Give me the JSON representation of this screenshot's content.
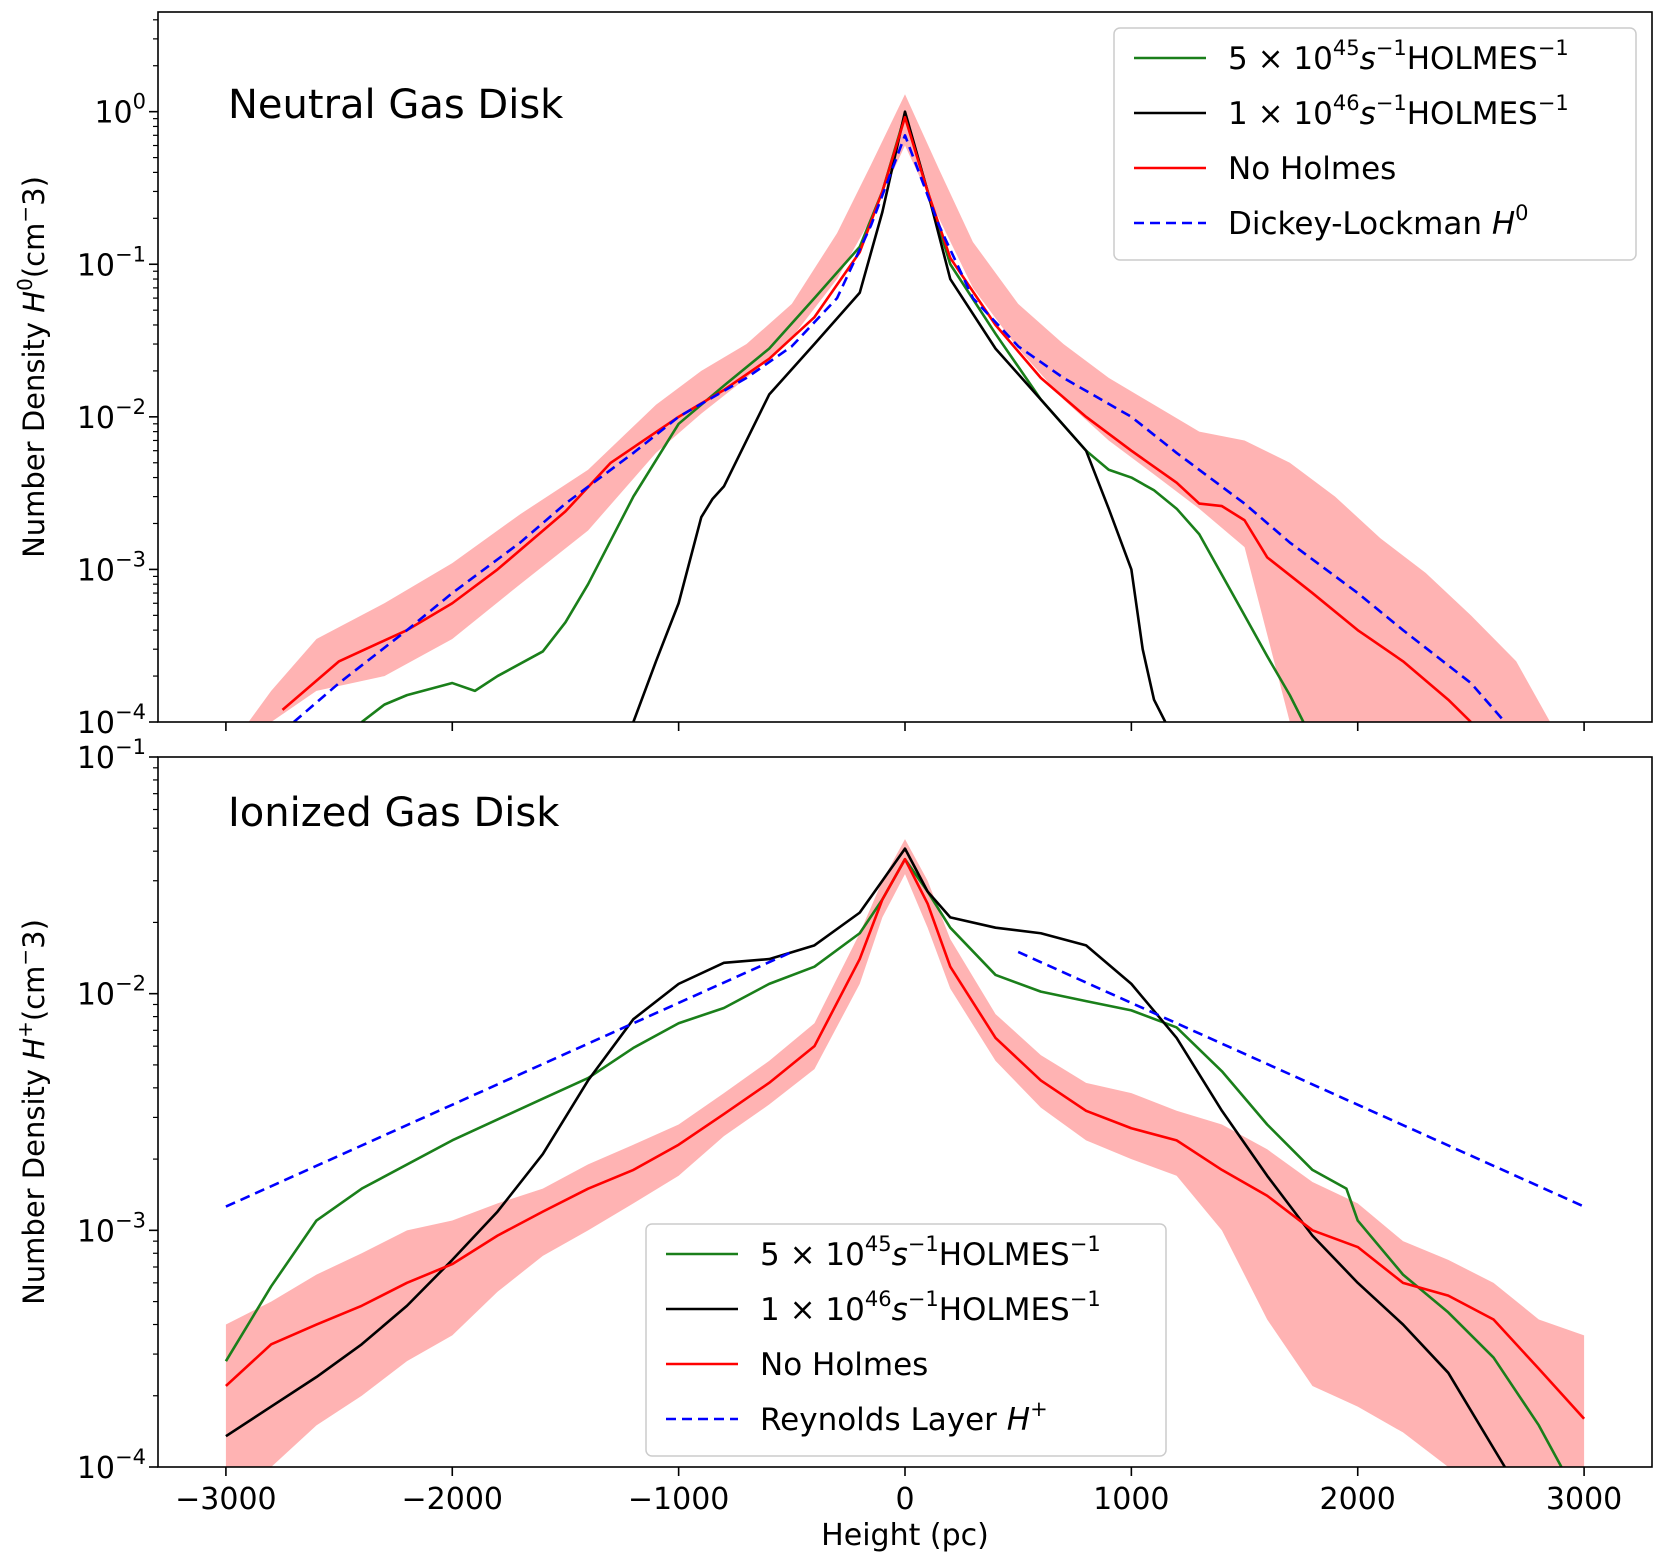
{
  "xlabel": "Height (pc)",
  "chart_data": [
    {
      "type": "line",
      "title": "",
      "annotation": "Neutral Gas Disk",
      "ylabel": "Number Density H⁰(cm⁻3)",
      "ylabel_parts": [
        "Number Density ",
        "H",
        "0",
        "(cm",
        "−",
        "3)"
      ],
      "xlabel": "Height (pc)",
      "xlim": [
        -3300,
        3300
      ],
      "ylim": [
        0.0001,
        4.5
      ],
      "yscale": "log",
      "xticks": [
        -3000,
        -2000,
        -1000,
        0,
        1000,
        2000,
        3000
      ],
      "yticks": [
        {
          "value": 1,
          "exp": "0"
        },
        {
          "value": 0.1,
          "exp": "−1"
        },
        {
          "value": 0.01,
          "exp": "−2"
        },
        {
          "value": 0.001,
          "exp": "−3"
        },
        {
          "value": 0.0001,
          "exp": "−4"
        }
      ],
      "legend_position": "upper-right",
      "legend": [
        {
          "series": "green",
          "parts": [
            "5 × 10",
            "45",
            "s",
            "−1",
            "HOLMES",
            "−1"
          ]
        },
        {
          "series": "black",
          "parts": [
            "1 × 10",
            "46",
            "s",
            "−1",
            "HOLMES",
            "−1"
          ]
        },
        {
          "series": "red",
          "parts": [
            "No Holmes"
          ]
        },
        {
          "series": "blue",
          "parts": [
            "Dickey-Lockman ",
            "H",
            "0"
          ]
        }
      ],
      "series": [
        {
          "key": "green",
          "name": "5 × 10^45 s^-1 HOLMES^-1",
          "color": "#1a7f1a",
          "style": "solid",
          "x": [
            -2400,
            -2300,
            -2200,
            -2000,
            -1900,
            -1800,
            -1600,
            -1500,
            -1400,
            -1200,
            -1000,
            -800,
            -600,
            -400,
            -200,
            -100,
            0,
            100,
            200,
            400,
            600,
            800,
            900,
            1000,
            1100,
            1200,
            1300,
            1500,
            1600,
            1700,
            1760
          ],
          "y": [
            0.0001,
            0.00013,
            0.00015,
            0.00018,
            0.00016,
            0.0002,
            0.00029,
            0.00045,
            0.0008,
            0.003,
            0.009,
            0.016,
            0.028,
            0.06,
            0.13,
            0.3,
            0.95,
            0.3,
            0.1,
            0.035,
            0.013,
            0.006,
            0.0045,
            0.004,
            0.0033,
            0.0025,
            0.0017,
            0.0005,
            0.00027,
            0.00015,
            0.0001
          ]
        },
        {
          "key": "black",
          "name": "1 × 10^46 s^-1 HOLMES^-1",
          "color": "#000000",
          "style": "solid",
          "x": [
            -1200,
            -1100,
            -1000,
            -900,
            -850,
            -800,
            -700,
            -600,
            -400,
            -200,
            -100,
            0,
            100,
            200,
            400,
            600,
            800,
            900,
            1000,
            1050,
            1100,
            1150
          ],
          "y": [
            0.0001,
            0.00025,
            0.0006,
            0.0022,
            0.0029,
            0.0035,
            0.007,
            0.014,
            0.03,
            0.065,
            0.22,
            1.0,
            0.3,
            0.08,
            0.028,
            0.013,
            0.006,
            0.0025,
            0.001,
            0.0003,
            0.00014,
            0.0001
          ]
        },
        {
          "key": "red",
          "name": "No Holmes",
          "color": "#ff0000",
          "style": "solid",
          "x": [
            -2750,
            -2500,
            -2200,
            -2000,
            -1800,
            -1500,
            -1300,
            -1000,
            -800,
            -600,
            -400,
            -200,
            -100,
            0,
            100,
            200,
            400,
            600,
            800,
            1000,
            1200,
            1300,
            1400,
            1500,
            1600,
            1800,
            2000,
            2200,
            2400,
            2500
          ],
          "y": [
            0.00012,
            0.00025,
            0.0004,
            0.0006,
            0.001,
            0.0024,
            0.005,
            0.01,
            0.015,
            0.024,
            0.045,
            0.12,
            0.3,
            0.92,
            0.3,
            0.11,
            0.04,
            0.018,
            0.01,
            0.006,
            0.0037,
            0.0027,
            0.0026,
            0.0021,
            0.0012,
            0.0007,
            0.0004,
            0.00025,
            0.00014,
            0.0001
          ]
        },
        {
          "key": "blue",
          "name": "Dickey-Lockman H0",
          "color": "#0000ff",
          "style": "dashed",
          "x": [
            -2700,
            -2500,
            -2200,
            -2000,
            -1700,
            -1500,
            -1200,
            -1000,
            -700,
            -500,
            -300,
            -150,
            0,
            150,
            300,
            500,
            700,
            1000,
            1200,
            1500,
            1700,
            2000,
            2200,
            2500,
            2650
          ],
          "y": [
            0.0001,
            0.00018,
            0.0004,
            0.0007,
            0.0015,
            0.0027,
            0.0058,
            0.01,
            0.018,
            0.029,
            0.06,
            0.18,
            0.7,
            0.18,
            0.06,
            0.029,
            0.018,
            0.01,
            0.0058,
            0.0027,
            0.0015,
            0.0007,
            0.0004,
            0.00018,
            0.0001
          ]
        }
      ],
      "band": {
        "of": "red",
        "color": "#ff9999",
        "opacity": 0.75,
        "x": [
          -2900,
          -2800,
          -2600,
          -2300,
          -2000,
          -1700,
          -1400,
          -1100,
          -900,
          -700,
          -500,
          -300,
          -150,
          0,
          150,
          300,
          500,
          700,
          900,
          1100,
          1300,
          1500,
          1700,
          1900,
          2100,
          2300,
          2500,
          2700,
          2850
        ],
        "upper": [
          0.0001,
          0.00016,
          0.00035,
          0.0006,
          0.0011,
          0.0023,
          0.0045,
          0.012,
          0.02,
          0.03,
          0.055,
          0.16,
          0.45,
          1.3,
          0.42,
          0.14,
          0.055,
          0.03,
          0.018,
          0.012,
          0.008,
          0.007,
          0.005,
          0.003,
          0.0016,
          0.00095,
          0.0005,
          0.00025,
          0.0001
        ],
        "lower": [
          0.0001,
          0.0001,
          0.00016,
          0.0002,
          0.00035,
          0.0008,
          0.0018,
          0.0058,
          0.0105,
          0.018,
          0.033,
          0.08,
          0.2,
          0.6,
          0.2,
          0.07,
          0.028,
          0.013,
          0.007,
          0.0042,
          0.0025,
          0.0014,
          0.0001,
          0.0001,
          0.0001,
          0.0001,
          0.0001,
          0.0001,
          0.0001
        ]
      }
    },
    {
      "type": "line",
      "title": "",
      "annotation": "Ionized Gas Disk",
      "ylabel": "Number Density H⁺(cm⁻3)",
      "ylabel_parts": [
        "Number Density ",
        "H",
        "+",
        "(cm",
        "−",
        "3)"
      ],
      "xlabel": "Height (pc)",
      "xlim": [
        -3300,
        3300
      ],
      "ylim": [
        0.0001,
        0.1
      ],
      "yscale": "log",
      "xticks": [
        -3000,
        -2000,
        -1000,
        0,
        1000,
        2000,
        3000
      ],
      "yticks": [
        {
          "value": 0.1,
          "exp": "−1"
        },
        {
          "value": 0.01,
          "exp": "−2"
        },
        {
          "value": 0.001,
          "exp": "−3"
        },
        {
          "value": 0.0001,
          "exp": "−4"
        }
      ],
      "legend_position": "lower-center",
      "legend": [
        {
          "series": "green",
          "parts": [
            "5 × 10",
            "45",
            "s",
            "−1",
            "HOLMES",
            "−1"
          ]
        },
        {
          "series": "black",
          "parts": [
            "1 × 10",
            "46",
            "s",
            "−1",
            "HOLMES",
            "−1"
          ]
        },
        {
          "series": "red",
          "parts": [
            "No Holmes"
          ]
        },
        {
          "series": "blue",
          "parts": [
            "Reynolds Layer ",
            "H",
            "+"
          ]
        }
      ],
      "series": [
        {
          "key": "green",
          "name": "5 × 10^45 s^-1 HOLMES^-1",
          "color": "#1a7f1a",
          "style": "solid",
          "x": [
            -3000,
            -2800,
            -2600,
            -2400,
            -2000,
            -1600,
            -1400,
            -1200,
            -1000,
            -800,
            -600,
            -400,
            -200,
            -100,
            0,
            100,
            200,
            400,
            600,
            800,
            1000,
            1200,
            1400,
            1600,
            1800,
            1950,
            2000,
            2200,
            2400,
            2600,
            2800,
            2900
          ],
          "y": [
            0.00028,
            0.00058,
            0.0011,
            0.0015,
            0.0024,
            0.0036,
            0.0044,
            0.0059,
            0.0075,
            0.0087,
            0.011,
            0.013,
            0.018,
            0.025,
            0.037,
            0.027,
            0.019,
            0.012,
            0.0102,
            0.0093,
            0.0085,
            0.0072,
            0.0047,
            0.0028,
            0.0018,
            0.0015,
            0.0011,
            0.00065,
            0.00045,
            0.00029,
            0.00015,
            0.0001
          ]
        },
        {
          "key": "black",
          "name": "1 × 10^46 s^-1 HOLMES^-1",
          "color": "#000000",
          "style": "solid",
          "x": [
            -3000,
            -2800,
            -2600,
            -2400,
            -2200,
            -2000,
            -1800,
            -1600,
            -1400,
            -1200,
            -1000,
            -800,
            -600,
            -400,
            -200,
            -100,
            0,
            100,
            200,
            400,
            600,
            800,
            1000,
            1200,
            1400,
            1600,
            1800,
            2000,
            2200,
            2400,
            2600,
            2650
          ],
          "y": [
            0.000135,
            0.00018,
            0.00024,
            0.00033,
            0.00048,
            0.00075,
            0.0012,
            0.0021,
            0.0043,
            0.0078,
            0.011,
            0.0135,
            0.014,
            0.016,
            0.022,
            0.03,
            0.041,
            0.027,
            0.021,
            0.019,
            0.018,
            0.016,
            0.011,
            0.0065,
            0.0032,
            0.0017,
            0.00095,
            0.0006,
            0.0004,
            0.00025,
            0.00012,
            0.0001
          ]
        },
        {
          "key": "red",
          "name": "No Holmes",
          "color": "#ff0000",
          "style": "solid",
          "x": [
            -3000,
            -2800,
            -2600,
            -2400,
            -2200,
            -2000,
            -1800,
            -1600,
            -1400,
            -1200,
            -1000,
            -800,
            -600,
            -400,
            -200,
            -100,
            0,
            100,
            200,
            400,
            600,
            800,
            1000,
            1200,
            1400,
            1600,
            1800,
            2000,
            2200,
            2400,
            2600,
            2800,
            3000
          ],
          "y": [
            0.00022,
            0.00033,
            0.0004,
            0.00048,
            0.0006,
            0.00072,
            0.00095,
            0.0012,
            0.0015,
            0.0018,
            0.0023,
            0.0031,
            0.0042,
            0.006,
            0.014,
            0.025,
            0.037,
            0.024,
            0.013,
            0.0065,
            0.0043,
            0.0032,
            0.0027,
            0.0024,
            0.0018,
            0.0014,
            0.001,
            0.00085,
            0.0006,
            0.00053,
            0.00042,
            0.00026,
            0.00016
          ]
        },
        {
          "key": "blue",
          "name": "Reynolds Layer H+",
          "color": "#0000ff",
          "style": "dashed",
          "segments": [
            {
              "x": [
                -3000,
                -500
              ],
              "y": [
                0.00126,
                0.015
              ]
            },
            {
              "x": [
                500,
                3000
              ],
              "y": [
                0.015,
                0.00126
              ]
            }
          ]
        }
      ],
      "band": {
        "of": "red",
        "color": "#ff9999",
        "opacity": 0.75,
        "x": [
          -3000,
          -2800,
          -2600,
          -2400,
          -2200,
          -2000,
          -1800,
          -1600,
          -1400,
          -1200,
          -1000,
          -800,
          -600,
          -400,
          -200,
          -100,
          0,
          100,
          200,
          400,
          600,
          800,
          1000,
          1200,
          1400,
          1600,
          1800,
          2000,
          2200,
          2400,
          2600,
          2800,
          3000
        ],
        "upper": [
          0.0004,
          0.0005,
          0.00065,
          0.0008,
          0.001,
          0.0011,
          0.0013,
          0.0015,
          0.0019,
          0.0023,
          0.0028,
          0.0038,
          0.0052,
          0.0075,
          0.018,
          0.03,
          0.045,
          0.03,
          0.017,
          0.0082,
          0.0055,
          0.0042,
          0.0038,
          0.0032,
          0.0028,
          0.0022,
          0.0016,
          0.0013,
          0.0009,
          0.00075,
          0.0006,
          0.00042,
          0.00036
        ],
        "lower": [
          0.0001,
          0.0001,
          0.00015,
          0.0002,
          0.00028,
          0.00036,
          0.00055,
          0.00078,
          0.001,
          0.0013,
          0.0017,
          0.0025,
          0.0034,
          0.0048,
          0.011,
          0.021,
          0.032,
          0.019,
          0.0105,
          0.0052,
          0.0033,
          0.0024,
          0.002,
          0.0017,
          0.001,
          0.00042,
          0.00022,
          0.00018,
          0.00014,
          0.0001,
          0.0001,
          0.0001,
          0.0001
        ]
      }
    }
  ]
}
